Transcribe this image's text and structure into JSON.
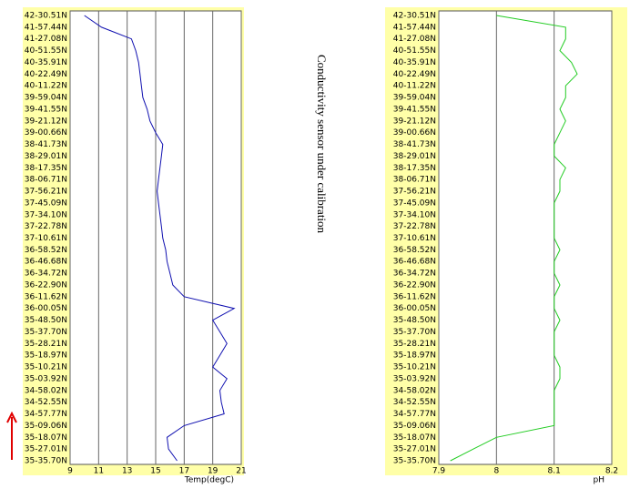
{
  "chart_data": [
    {
      "type": "line",
      "xlabel": "Temp(degC)",
      "annotation": "Conductivity sensor under calibration",
      "categories": [
        "42-30.51N",
        "41-57.44N",
        "41-27.08N",
        "40-51.55N",
        "40-35.91N",
        "40-22.49N",
        "40-11.22N",
        "39-59.04N",
        "39-41.55N",
        "39-21.12N",
        "39-00.66N",
        "38-41.73N",
        "38-29.01N",
        "38-17.35N",
        "38-06.71N",
        "37-56.21N",
        "37-45.09N",
        "37-34.10N",
        "37-22.78N",
        "37-10.61N",
        "36-58.52N",
        "36-46.68N",
        "36-34.72N",
        "36-22.90N",
        "36-11.62N",
        "36-00.05N",
        "35-48.50N",
        "35-37.70N",
        "35-28.21N",
        "35-18.97N",
        "35-10.21N",
        "35-03.92N",
        "34-58.02N",
        "34-52.55N",
        "34-57.77N",
        "35-09.06N",
        "35-18.07N",
        "35-27.01N",
        "35-35.70N"
      ],
      "series": [
        {
          "name": "Temp(degC)",
          "color": "#1010b0",
          "values": [
            10.0,
            11.2,
            13.3,
            13.6,
            13.8,
            13.9,
            14.0,
            14.1,
            14.4,
            14.6,
            15.0,
            15.5,
            15.4,
            15.3,
            15.2,
            15.1,
            15.2,
            15.3,
            15.4,
            15.5,
            15.7,
            15.8,
            16.0,
            16.2,
            17.0,
            20.5,
            19.0,
            19.5,
            20.0,
            19.5,
            19.0,
            20.0,
            19.5,
            19.6,
            19.8,
            17.0,
            15.8,
            15.9,
            16.5
          ]
        }
      ],
      "xlim": [
        9,
        21
      ],
      "xticks": [
        9,
        11,
        13,
        15,
        17,
        19,
        21
      ],
      "grid": true
    },
    {
      "type": "line",
      "xlabel": "pH",
      "categories": [
        "42-30.51N",
        "41-57.44N",
        "41-27.08N",
        "40-51.55N",
        "40-35.91N",
        "40-22.49N",
        "40-11.22N",
        "39-59.04N",
        "39-41.55N",
        "39-21.12N",
        "39-00.66N",
        "38-41.73N",
        "38-29.01N",
        "38-17.35N",
        "38-06.71N",
        "37-56.21N",
        "37-45.09N",
        "37-34.10N",
        "37-22.78N",
        "37-10.61N",
        "36-58.52N",
        "36-46.68N",
        "36-34.72N",
        "36-22.90N",
        "36-11.62N",
        "36-00.05N",
        "35-48.50N",
        "35-37.70N",
        "35-28.21N",
        "35-18.97N",
        "35-10.21N",
        "35-03.92N",
        "34-58.02N",
        "34-52.55N",
        "34-57.77N",
        "35-09.06N",
        "35-18.07N",
        "35-27.01N",
        "35-35.70N"
      ],
      "series": [
        {
          "name": "pH",
          "color": "#22cc22",
          "values": [
            8.0,
            8.12,
            8.12,
            8.11,
            8.13,
            8.14,
            8.12,
            8.12,
            8.11,
            8.12,
            8.11,
            8.1,
            8.1,
            8.12,
            8.11,
            8.11,
            8.1,
            8.1,
            8.1,
            8.1,
            8.11,
            8.1,
            8.1,
            8.11,
            8.1,
            8.1,
            8.11,
            8.1,
            8.1,
            8.1,
            8.11,
            8.11,
            8.1,
            8.1,
            8.1,
            8.1,
            8.0,
            7.96,
            7.92
          ]
        }
      ],
      "xlim": [
        7.9,
        8.2
      ],
      "xticks": [
        7.9,
        8,
        8.1,
        8.2
      ],
      "grid": true
    }
  ]
}
